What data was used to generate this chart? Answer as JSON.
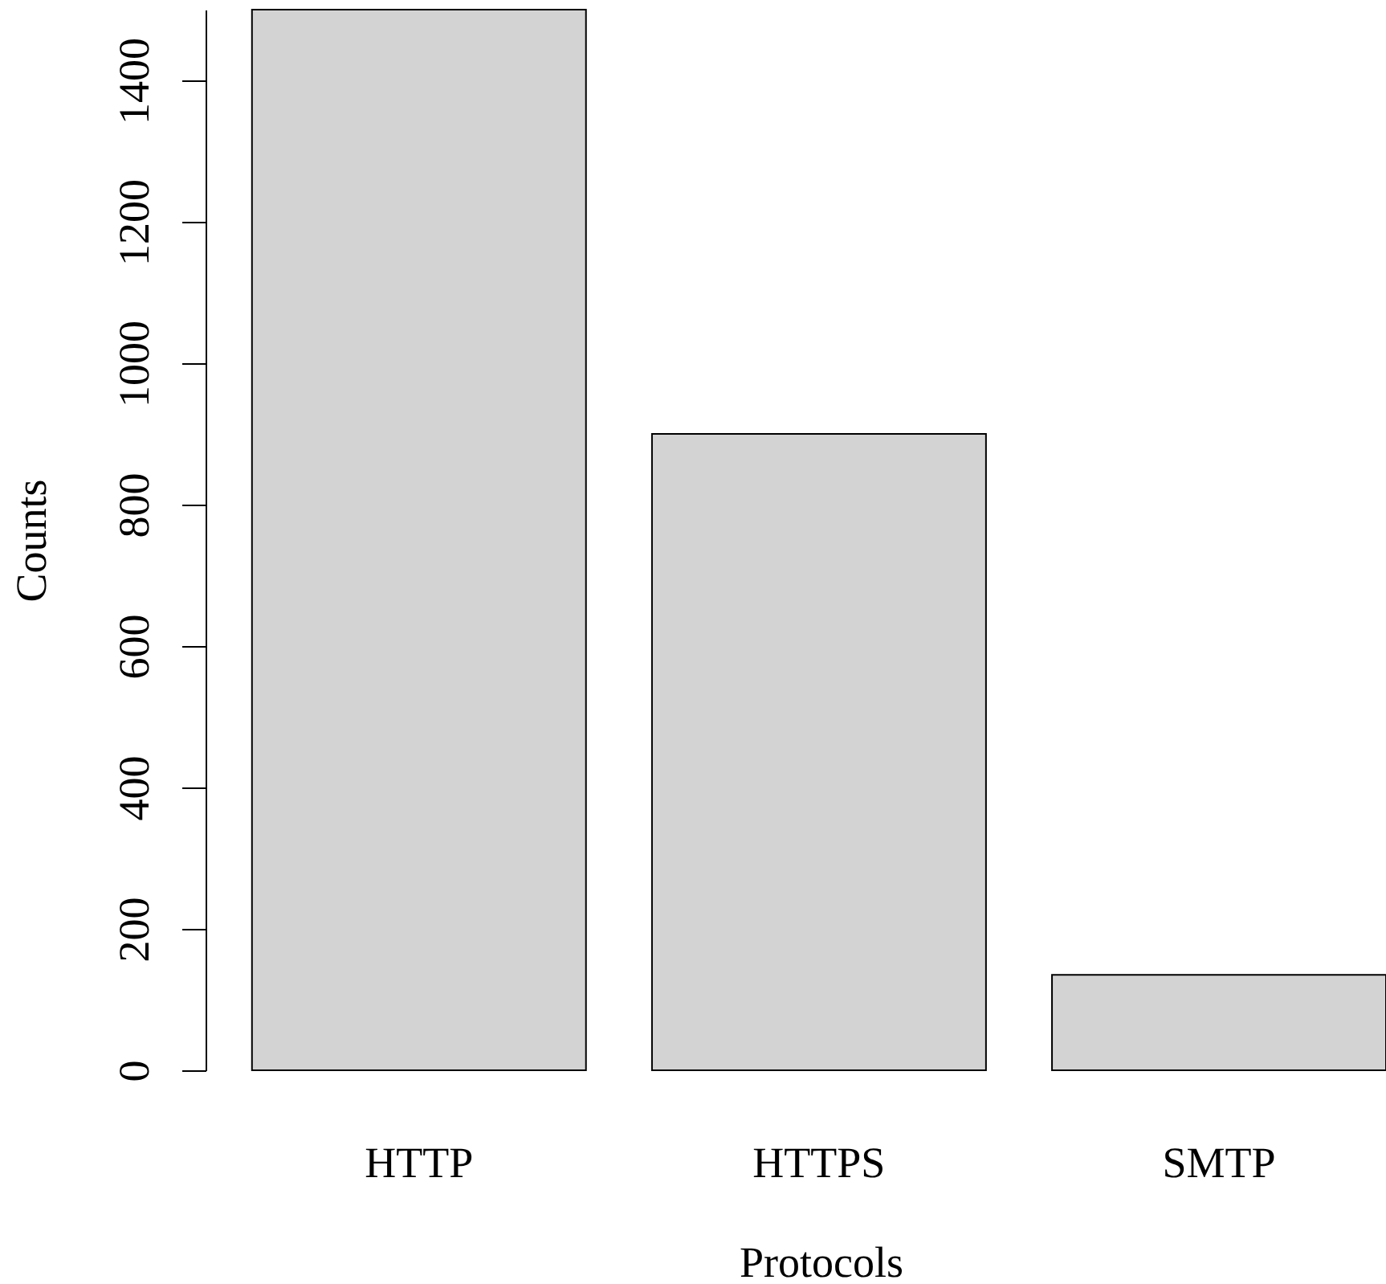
{
  "chart_data": {
    "type": "bar",
    "xlabel": "Protocols",
    "ylabel": "Counts",
    "categories": [
      "HTTP",
      "HTTPS",
      "SMTP"
    ],
    "values": [
      1500,
      900,
      135
    ],
    "color": "#d3d3d3",
    "ylim": [
      0,
      1500
    ],
    "yticks": [
      0,
      200,
      400,
      600,
      800,
      1000,
      1200,
      1400
    ]
  }
}
